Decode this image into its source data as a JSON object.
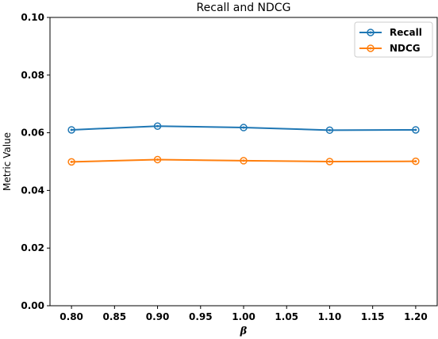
{
  "chart_data": {
    "type": "line",
    "title": "Recall and NDCG",
    "xlabel": "β",
    "ylabel": "Metric Value",
    "x": [
      0.8,
      0.9,
      1.0,
      1.1,
      1.2
    ],
    "xlim": [
      0.775,
      1.225
    ],
    "ylim": [
      0.0,
      0.1
    ],
    "xticks": [
      "0.80",
      "0.85",
      "0.90",
      "0.95",
      "1.00",
      "1.05",
      "1.10",
      "1.15",
      "1.20"
    ],
    "yticks": [
      "0.00",
      "0.02",
      "0.04",
      "0.06",
      "0.08",
      "0.10"
    ],
    "grid": false,
    "legend": "top-right",
    "series": [
      {
        "name": "Recall",
        "color": "#1f77b4",
        "values": [
          0.061,
          0.0623,
          0.0618,
          0.0609,
          0.061
        ]
      },
      {
        "name": "NDCG",
        "color": "#ff7f0e",
        "values": [
          0.0499,
          0.0507,
          0.0503,
          0.05,
          0.0501
        ]
      }
    ]
  }
}
